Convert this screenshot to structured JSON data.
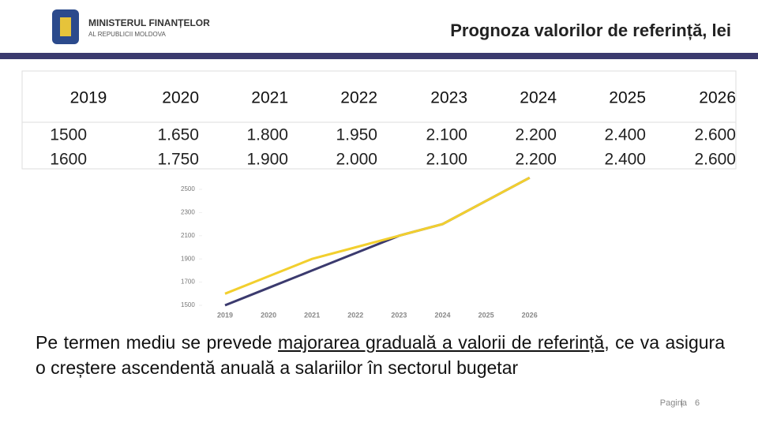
{
  "header": {
    "logo_line1": "MINISTERUL FINANȚELOR",
    "logo_line2": "AL REPUBLICII MOLDOVA",
    "title": "Prognoza valorilor de referință, lei"
  },
  "table": {
    "header": [
      "2019",
      "2020",
      "2021",
      "2022",
      "2023",
      "2024",
      "2025",
      "2026"
    ],
    "rows": [
      [
        "1500",
        "1.650",
        "1.800",
        "1.950",
        "2.100",
        "2.200",
        "2.400",
        "2.600"
      ],
      [
        "1600",
        "1.750",
        "1.900",
        "2.000",
        "2.100",
        "2.200",
        "2.400",
        "2.600"
      ]
    ]
  },
  "chart_data": {
    "type": "line",
    "categories": [
      "2019",
      "2020",
      "2021",
      "2022",
      "2023",
      "2024",
      "2025",
      "2026"
    ],
    "series": [
      {
        "color": "#3b3a6e",
        "values": [
          1500,
          1650,
          1800,
          1950,
          2100,
          2200,
          2400,
          2600
        ]
      },
      {
        "color": "#f2cf2e",
        "values": [
          1600,
          1750,
          1900,
          2000,
          2100,
          2200,
          2400,
          2600
        ]
      }
    ],
    "ylim": [
      1500,
      2500
    ],
    "yticks": [
      1500,
      1700,
      1900,
      2100,
      2300,
      2500
    ]
  },
  "body": {
    "part1": "Pe termen mediu se prevede ",
    "underlined": "majorarea graduală a valorii de referință",
    "part2": ", ce va asigura o creștere ascendentă anuală a salariilor în sectorul bugetar"
  },
  "footer": {
    "page_label": "Pagina",
    "separator": "|",
    "page_number": "6"
  }
}
